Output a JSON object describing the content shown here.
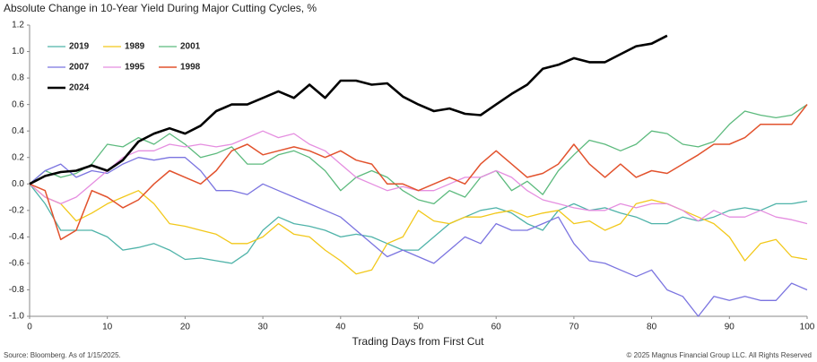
{
  "chart_data": {
    "type": "line",
    "title": "Absolute Change in 10-Year Yield During Major Cutting Cycles, %",
    "x_label": "Trading Days from First Cut",
    "source": "Source: Bloomberg. As of 1/15/2025.",
    "copyright": "© 2025 Magnus Financial Group LLC. All Rights Reserved",
    "x": [
      0,
      2,
      4,
      6,
      8,
      10,
      12,
      14,
      16,
      18,
      20,
      22,
      24,
      26,
      28,
      30,
      32,
      34,
      36,
      38,
      40,
      42,
      44,
      46,
      48,
      50,
      52,
      54,
      56,
      58,
      60,
      62,
      64,
      66,
      68,
      70,
      72,
      74,
      76,
      78,
      80,
      82,
      84,
      86,
      88,
      90,
      92,
      94,
      96,
      98,
      100
    ],
    "series": [
      {
        "name": "2019",
        "color": "#4fb3a9",
        "width": 1.3,
        "values": [
          0,
          -0.15,
          -0.35,
          -0.35,
          -0.35,
          -0.4,
          -0.5,
          -0.48,
          -0.45,
          -0.5,
          -0.57,
          -0.56,
          -0.58,
          -0.6,
          -0.52,
          -0.35,
          -0.25,
          -0.3,
          -0.32,
          -0.35,
          -0.4,
          -0.38,
          -0.4,
          -0.45,
          -0.5,
          -0.5,
          -0.4,
          -0.3,
          -0.25,
          -0.2,
          -0.18,
          -0.22,
          -0.3,
          -0.35,
          -0.2,
          -0.15,
          -0.2,
          -0.18,
          -0.22,
          -0.25,
          -0.3,
          -0.3,
          -0.25,
          -0.28,
          -0.25,
          -0.2,
          -0.18,
          -0.2,
          -0.15,
          -0.15,
          -0.13
        ]
      },
      {
        "name": "1989",
        "color": "#f2c81a",
        "width": 1.3,
        "values": [
          0,
          -0.1,
          -0.15,
          -0.28,
          -0.22,
          -0.15,
          -0.1,
          -0.05,
          -0.15,
          -0.3,
          -0.32,
          -0.35,
          -0.38,
          -0.45,
          -0.45,
          -0.4,
          -0.3,
          -0.38,
          -0.4,
          -0.5,
          -0.58,
          -0.68,
          -0.65,
          -0.45,
          -0.4,
          -0.2,
          -0.28,
          -0.3,
          -0.25,
          -0.25,
          -0.22,
          -0.2,
          -0.25,
          -0.22,
          -0.2,
          -0.3,
          -0.28,
          -0.35,
          -0.3,
          -0.15,
          -0.12,
          -0.15,
          -0.2,
          -0.25,
          -0.3,
          -0.4,
          -0.58,
          -0.45,
          -0.42,
          -0.55,
          -0.57
        ]
      },
      {
        "name": "2001",
        "color": "#5cba7d",
        "width": 1.3,
        "values": [
          0,
          0.1,
          0.05,
          0.08,
          0.15,
          0.3,
          0.28,
          0.35,
          0.3,
          0.38,
          0.3,
          0.2,
          0.23,
          0.28,
          0.15,
          0.15,
          0.22,
          0.25,
          0.2,
          0.1,
          -0.05,
          0.05,
          0.1,
          0.05,
          -0.05,
          -0.12,
          -0.15,
          -0.05,
          -0.1,
          0.05,
          0.1,
          -0.05,
          0.02,
          -0.08,
          0.1,
          0.22,
          0.33,
          0.3,
          0.25,
          0.3,
          0.4,
          0.38,
          0.3,
          0.28,
          0.32,
          0.45,
          0.55,
          0.52,
          0.5,
          0.52,
          0.6
        ]
      },
      {
        "name": "2007",
        "color": "#7b74e0",
        "width": 1.3,
        "values": [
          0,
          0.1,
          0.15,
          0.05,
          0.1,
          0.08,
          0.15,
          0.2,
          0.18,
          0.2,
          0.2,
          0.1,
          -0.05,
          -0.05,
          -0.08,
          0,
          -0.05,
          -0.1,
          -0.15,
          -0.2,
          -0.25,
          -0.35,
          -0.45,
          -0.55,
          -0.5,
          -0.55,
          -0.6,
          -0.5,
          -0.4,
          -0.45,
          -0.3,
          -0.35,
          -0.35,
          -0.3,
          -0.25,
          -0.45,
          -0.58,
          -0.6,
          -0.65,
          -0.7,
          -0.65,
          -0.8,
          -0.85,
          -1.0,
          -0.85,
          -0.88,
          -0.85,
          -0.88,
          -0.88,
          -0.75,
          -0.8
        ]
      },
      {
        "name": "1995",
        "color": "#e58ee0",
        "width": 1.3,
        "values": [
          0,
          -0.1,
          -0.15,
          -0.1,
          0,
          0.1,
          0.2,
          0.25,
          0.25,
          0.3,
          0.28,
          0.3,
          0.28,
          0.3,
          0.35,
          0.4,
          0.35,
          0.38,
          0.3,
          0.25,
          0.15,
          0.05,
          0,
          -0.05,
          -0.02,
          -0.05,
          -0.05,
          0,
          0.05,
          0.05,
          0.1,
          0.05,
          -0.05,
          -0.12,
          -0.15,
          -0.18,
          -0.2,
          -0.2,
          -0.15,
          -0.18,
          -0.15,
          -0.15,
          -0.2,
          -0.28,
          -0.2,
          -0.25,
          -0.25,
          -0.2,
          -0.25,
          -0.27,
          -0.3
        ]
      },
      {
        "name": "1998",
        "color": "#e2522d",
        "width": 1.5,
        "values": [
          0,
          -0.05,
          -0.42,
          -0.35,
          -0.05,
          -0.1,
          -0.18,
          -0.12,
          0,
          0.1,
          0.05,
          0,
          0.1,
          0.25,
          0.3,
          0.22,
          0.25,
          0.28,
          0.25,
          0.2,
          0.25,
          0.18,
          0.15,
          0,
          0,
          -0.05,
          0,
          0.05,
          0,
          0.15,
          0.25,
          0.15,
          0.05,
          0.08,
          0.15,
          0.3,
          0.15,
          0.05,
          0.15,
          0.05,
          0.1,
          0.08,
          0.15,
          0.22,
          0.3,
          0.3,
          0.35,
          0.45,
          0.45,
          0.45,
          0.6
        ]
      },
      {
        "name": "2024",
        "color": "#000000",
        "width": 2.6,
        "values": [
          0,
          0.06,
          0.09,
          0.1,
          0.14,
          0.1,
          0.18,
          0.32,
          0.38,
          0.42,
          0.38,
          0.44,
          0.55,
          0.6,
          0.6,
          0.65,
          0.7,
          0.65,
          0.75,
          0.65,
          0.78,
          0.78,
          0.75,
          0.76,
          0.66,
          0.6,
          0.55,
          0.57,
          0.53,
          0.52,
          0.6,
          0.68,
          0.75,
          0.87,
          0.9,
          0.95,
          0.92,
          0.92,
          0.98,
          1.04,
          1.06,
          1.12,
          null,
          null,
          null,
          null,
          null,
          null,
          null,
          null,
          null
        ]
      }
    ],
    "xlim": [
      0,
      100
    ],
    "xticks": [
      0,
      10,
      20,
      30,
      40,
      50,
      60,
      70,
      80,
      90,
      100
    ],
    "ylim": [
      -1.0,
      1.2
    ],
    "yticks": [
      {
        "value": -1.0,
        "label": "-1.0"
      },
      -0.8,
      -0.6,
      -0.4,
      -0.2,
      {
        "value": 0,
        "label": "0.0"
      },
      0.2,
      0.4,
      0.6,
      0.8,
      {
        "value": 1.0,
        "label": "1.0"
      },
      1.2
    ],
    "grid": false,
    "legend": "upper left"
  }
}
